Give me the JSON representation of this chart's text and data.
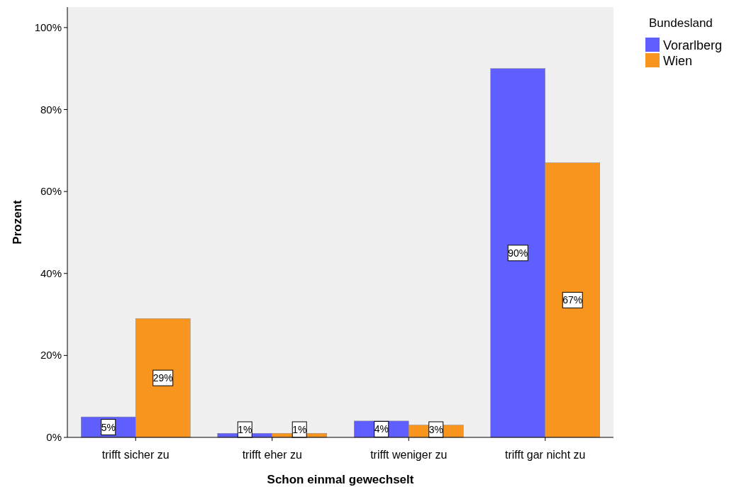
{
  "chart_data": {
    "type": "bar",
    "xlabel": "Schon einmal gewechselt",
    "ylabel": "Prozent",
    "legend_title": "Bundesland",
    "legend": "top right",
    "categories": [
      "trifft sicher zu",
      "trifft eher zu",
      "trifft weniger zu",
      "trifft gar nicht zu"
    ],
    "series": [
      {
        "name": "Vorarlberg",
        "color": "#5f5fff",
        "values": [
          5,
          1,
          4,
          90
        ],
        "value_labels": [
          "5%",
          "1%",
          "4%",
          "90%"
        ]
      },
      {
        "name": "Wien",
        "color": "#f7951f",
        "values": [
          29,
          1,
          3,
          67
        ],
        "value_labels": [
          "29%",
          "1%",
          "3%",
          "67%"
        ]
      }
    ],
    "ylim": [
      0,
      105
    ],
    "yticks": [
      {
        "value": 0,
        "label": "0%"
      },
      {
        "value": 20,
        "label": "20%"
      },
      {
        "value": 40,
        "label": "40%"
      },
      {
        "value": 60,
        "label": "60%"
      },
      {
        "value": 80,
        "label": "80%"
      },
      {
        "value": 100,
        "label": "100%"
      }
    ],
    "grid": false
  }
}
